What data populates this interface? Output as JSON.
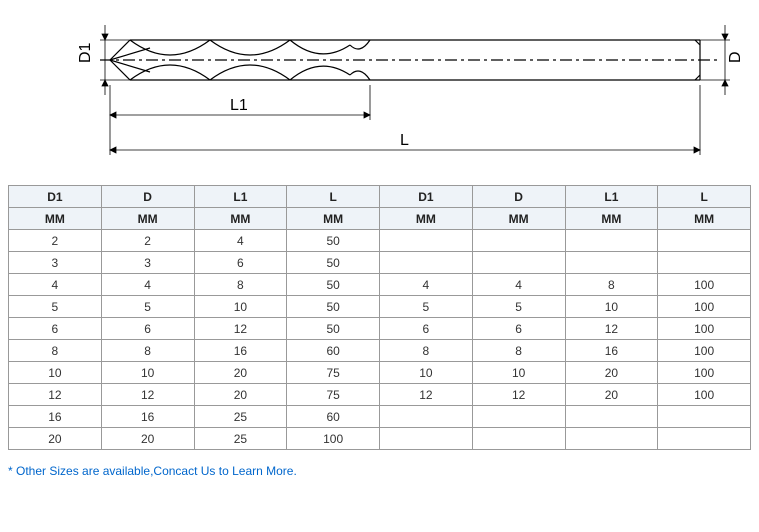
{
  "diagram": {
    "labels": {
      "D1": "D1",
      "D": "D",
      "L1": "L1",
      "L": "L"
    },
    "stroke": "#000000",
    "fill": "#ffffff"
  },
  "table": {
    "headers": [
      "D1",
      "D",
      "L1",
      "L",
      "D1",
      "D",
      "L1",
      "L"
    ],
    "units": [
      "MM",
      "MM",
      "MM",
      "MM",
      "MM",
      "MM",
      "MM",
      "MM"
    ],
    "rows": [
      [
        "2",
        "2",
        "4",
        "50",
        "",
        "",
        "",
        ""
      ],
      [
        "3",
        "3",
        "6",
        "50",
        "",
        "",
        "",
        ""
      ],
      [
        "4",
        "4",
        "8",
        "50",
        "4",
        "4",
        "8",
        "100"
      ],
      [
        "5",
        "5",
        "10",
        "50",
        "5",
        "5",
        "10",
        "100"
      ],
      [
        "6",
        "6",
        "12",
        "50",
        "6",
        "6",
        "12",
        "100"
      ],
      [
        "8",
        "8",
        "16",
        "60",
        "8",
        "8",
        "16",
        "100"
      ],
      [
        "10",
        "10",
        "20",
        "75",
        "10",
        "10",
        "20",
        "100"
      ],
      [
        "12",
        "12",
        "20",
        "75",
        "12",
        "12",
        "20",
        "100"
      ],
      [
        "16",
        "16",
        "25",
        "60",
        "",
        "",
        "",
        ""
      ],
      [
        "20",
        "20",
        "25",
        "100",
        "",
        "",
        "",
        ""
      ]
    ],
    "header_bg": "#eef3f8",
    "border_color": "#999999",
    "text_color": "#333333",
    "font_size": 12
  },
  "footnote": {
    "text": "* Other Sizes are available,Concact Us to Learn More.",
    "color": "#0066cc",
    "font_size": 12
  }
}
